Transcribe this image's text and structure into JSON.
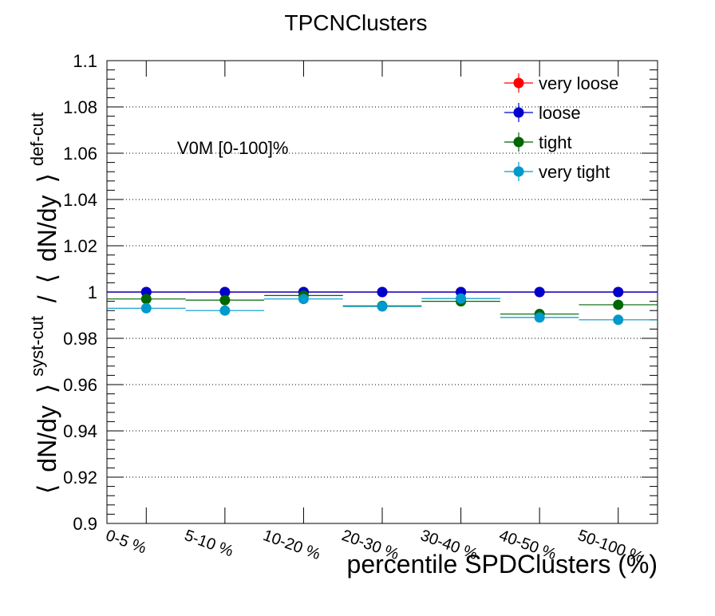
{
  "chart_data": {
    "type": "scatter",
    "title": "TPCNClusters",
    "xlabel": "percentile SPDClusters (%)",
    "ylabel": {
      "left_bracket": "⟨",
      "dndy_1": "dN/dy",
      "right_bracket_1": "⟩",
      "sup_1": "syst-cut",
      "divider": "/",
      "left_bracket_2": "⟨",
      "dndy_2": "dN/dy",
      "right_bracket_2": "⟩",
      "sup_2": "def-cut"
    },
    "annotation": "V0M [0-100]%",
    "categories": [
      "0-5 %",
      "5-10 %",
      "10-20 %",
      "20-30 %",
      "30-40 %",
      "40-50 %",
      "50-100 %"
    ],
    "ylim": [
      0.9,
      1.1
    ],
    "yticks": [
      "0.9",
      "0.92",
      "0.94",
      "0.96",
      "0.98",
      "1",
      "1.02",
      "1.04",
      "1.06",
      "1.08",
      "1.1"
    ],
    "grid": "horizontal",
    "legend_position": "top-right",
    "series": [
      {
        "name": "very loose",
        "color": "#ff0000",
        "values": [
          1.0,
          1.0,
          1.0,
          1.0,
          1.0,
          1.0,
          1.0
        ],
        "errors": [
          0.001,
          0.001,
          0.002,
          0.001,
          0.001,
          0.001,
          0.001
        ]
      },
      {
        "name": "loose",
        "color": "#0000cc",
        "values": [
          1.0,
          1.0,
          1.0,
          1.0,
          1.0,
          1.0,
          1.0
        ],
        "errors": [
          0.001,
          0.001,
          0.002,
          0.001,
          0.001,
          0.001,
          0.001
        ]
      },
      {
        "name": "tight",
        "color": "#006600",
        "values": [
          0.997,
          0.9965,
          0.9985,
          0.994,
          0.996,
          0.9905,
          0.9945
        ],
        "errors": [
          0.002,
          0.002,
          0.002,
          0.002,
          0.002,
          0.002,
          0.002
        ]
      },
      {
        "name": "very tight",
        "color": "#0099cc",
        "values": [
          0.993,
          0.992,
          0.997,
          0.9938,
          0.9972,
          0.989,
          0.988
        ],
        "errors": [
          0.002,
          0.002,
          0.002,
          0.002,
          0.002,
          0.002,
          0.002
        ]
      }
    ]
  }
}
